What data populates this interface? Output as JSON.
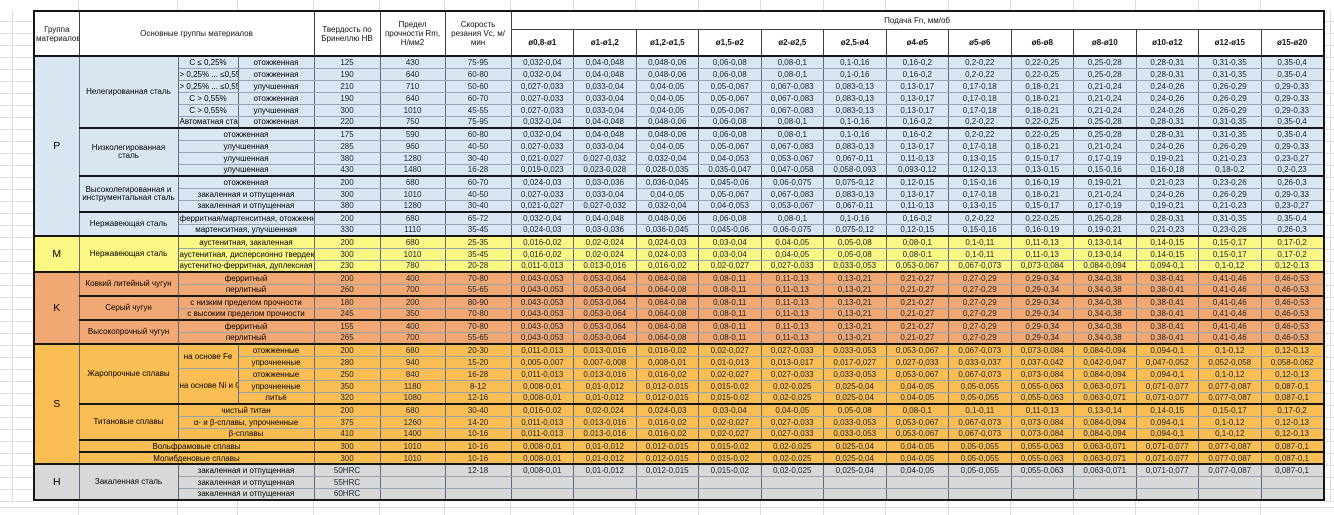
{
  "header": {
    "col_group": "Группа материалов",
    "col_main": "Основные группы материалов",
    "col_hardness": "Твердость по Бринеллю HB",
    "col_strength": "Предел прочности Rm, Н/мм2",
    "col_speed": "Скорость резания Vc, м/мин",
    "feed_title": "Подача Fn, мм/об",
    "feed_cols": [
      "ø0,8-ø1",
      "ø1-ø1,2",
      "ø1,2-ø1,5",
      "ø1,5-ø2",
      "ø2-ø2,5",
      "ø2,5-ø4",
      "ø4-ø5",
      "ø5-ø6",
      "ø6-ø8",
      "ø8-ø10",
      "ø10-ø12",
      "ø12-ø15",
      "ø15-ø20"
    ]
  },
  "colors": {
    "section_P": "#D9E5F1",
    "section_M": "#FAF784",
    "section_K": "#F2A873",
    "section_S": "#FBBE55",
    "section_H": "#D8D8D8",
    "marker_green": "#1E9B32"
  },
  "feed_patterns": {
    "A": [
      "0,032-0,04",
      "0,04-0,048",
      "0,048-0,06",
      "0,06-0,08",
      "0,08-0,1",
      "0,1-0,16",
      "0,16-0,2",
      "0,2-0,22",
      "0,22-0,25",
      "0,25-0,28",
      "0,28-0,31",
      "0,31-0,35",
      "0,35-0,4"
    ],
    "B": [
      "0,027-0,033",
      "0,033-0,04",
      "0,04-0,05",
      "0,05-0,067",
      "0,067-0,083",
      "0,083-0,13",
      "0,13-0,17",
      "0,17-0,18",
      "0,18-0,21",
      "0,21-0,24",
      "0,24-0,26",
      "0,26-0,29",
      "0,29-0,33"
    ],
    "C": [
      "0,021-0,027",
      "0,027-0,032",
      "0,032-0,04",
      "0,04-0,053",
      "0,053-0,067",
      "0,067-0,11",
      "0,11-0,13",
      "0,13-0,15",
      "0,15-0,17",
      "0,17-0,19",
      "0,19-0,21",
      "0,21-0,23",
      "0,23-0,27"
    ],
    "D": [
      "0,019-0,023",
      "0,023-0,028",
      "0,028-0,035",
      "0,035-0,047",
      "0,047-0,058",
      "0,058-0,093",
      "0,093-0,12",
      "0,12-0,13",
      "0,13-0,15",
      "0,15-0,16",
      "0,16-0,18",
      "0,18-0,2",
      "0,2-0,23"
    ],
    "E": [
      "0,024-0,03",
      "0,03-0,036",
      "0,036-0,045",
      "0,045-0,06",
      "0,06-0,075",
      "0,075-0,12",
      "0,12-0,15",
      "0,15-0,16",
      "0,16-0,19",
      "0,19-0,21",
      "0,21-0,23",
      "0,23-0,26",
      "0,26-0,3"
    ],
    "F": [
      "0,016-0,02",
      "0,02-0,024",
      "0,024-0,03",
      "0,03-0,04",
      "0,04-0,05",
      "0,05-0,08",
      "0,08-0,1",
      "0,1-0,11",
      "0,11-0,13",
      "0,13-0,14",
      "0,14-0,15",
      "0,15-0,17",
      "0,17-0,2"
    ],
    "G": [
      "0,011-0,013",
      "0,013-0,016",
      "0,016-0,02",
      "0,02-0,027",
      "0,027-0,033",
      "0,033-0,053",
      "0,053-0,067",
      "0,067-0,073",
      "0,073-0,084",
      "0,084-0,094",
      "0,094-0,1",
      "0,1-0,12",
      "0,12-0,13"
    ],
    "KCI": [
      "0,043-0,053",
      "0,053-0,064",
      "0,064-0,08",
      "0,08-0,11",
      "0,11-0,13",
      "0,13-0,21",
      "0,21-0,27",
      "0,27-0,29",
      "0,29-0,34",
      "0,34-0,38",
      "0,38-0,41",
      "0,41-0,46",
      "0,46-0,53"
    ],
    "S2": [
      "0,005-0,007",
      "0,007-0,008",
      "0,008-0,01",
      "0,01-0,013",
      "0,013-0,017",
      "0,017-0,027",
      "0,027-0,033",
      "0,033-0,037",
      "0,037-0,042",
      "0,042-0,047",
      "0,047-0,052",
      "0,052-0,058",
      "0,058-0,062"
    ],
    "S4": [
      "0,008-0,01",
      "0,01-0,012",
      "0,012-0,015",
      "0,015-0,02",
      "0,02-0,025",
      "0,025-0,04",
      "0,04-0,05",
      "0,05-0,055",
      "0,055-0,063",
      "0,063-0,071",
      "0,071-0,077",
      "0,077-0,087",
      "0,087-0,1"
    ]
  },
  "groups": [
    {
      "letter": "P",
      "blocks": [
        {
          "main": "Нелегированная сталь",
          "rows": [
            {
              "subA": "C ≤ 0,25%",
              "subB": "отожженная",
              "hb": "125",
              "rm": "430",
              "vc": "75-95",
              "feeds": "A"
            },
            {
              "subA": "> 0,25% ... ≤0,55",
              "subB": "отожженная",
              "hb": "190",
              "rm": "640",
              "vc": "60-80",
              "feeds": "A"
            },
            {
              "subA": "> 0,25% ... ≤0,55",
              "subB": "улучшенная",
              "hb": "210",
              "rm": "710",
              "vc": "50-60",
              "feeds": "B"
            },
            {
              "subA": "C > 0,55%",
              "subB": "отожженная",
              "hb": "190",
              "rm": "640",
              "vc": "60-70",
              "feeds": "B"
            },
            {
              "subA": "C > 0,55%",
              "subB": "улучшенная",
              "hb": "300",
              "rm": "1010",
              "vc": "45-55",
              "feeds": "B"
            },
            {
              "subA": "Автоматная сталь",
              "subB": "отожженная",
              "hb": "220",
              "rm": "750",
              "vc": "75-95",
              "feeds": "A"
            }
          ]
        },
        {
          "main": "Низколегированная сталь",
          "rows": [
            {
              "sub": "отожженная",
              "hb": "175",
              "rm": "590",
              "vc": "60-80",
              "feeds": "A"
            },
            {
              "sub": "улучшенная",
              "hb": "285",
              "rm": "960",
              "vc": "40-50",
              "feeds": "B"
            },
            {
              "sub": "улучшенная",
              "hb": "380",
              "rm": "1280",
              "vc": "30-40",
              "feeds": "C"
            },
            {
              "sub": "улучшенная",
              "hb": "430",
              "rm": "1480",
              "vc": "16-28",
              "feeds": "D"
            }
          ]
        },
        {
          "main": "Высоколегированная и инструментальная сталь",
          "rows": [
            {
              "sub": "отожженная",
              "hb": "200",
              "rm": "680",
              "vc": "60-70",
              "feeds": "E"
            },
            {
              "sub": "закаленная и отпущенная",
              "hb": "300",
              "rm": "1010",
              "vc": "40-50",
              "feeds": "B"
            },
            {
              "sub": "закаленная и отпущенная",
              "hb": "380",
              "rm": "1280",
              "vc": "30-40",
              "feeds": "C"
            }
          ]
        },
        {
          "main": "Нержавеющая сталь",
          "rows": [
            {
              "sub": "ферритная/мартенситная, отожженная",
              "hb": "200",
              "rm": "680",
              "vc": "65-72",
              "feeds": "A"
            },
            {
              "sub": "мартенситная, улучшенная",
              "hb": "330",
              "rm": "1110",
              "vc": "35-45",
              "feeds": "E"
            }
          ]
        }
      ]
    },
    {
      "letter": "M",
      "blocks": [
        {
          "main": "Нержавеющая сталь",
          "rows": [
            {
              "sub": "аустенитная, закаленная",
              "hb": "200",
              "rm": "680",
              "vc": "25-35",
              "feeds": "F"
            },
            {
              "sub": "аустенитная, дисперсионно твердеющая",
              "hb": "300",
              "rm": "1010",
              "vc": "35-45",
              "feeds": "F"
            },
            {
              "sub": "аустенитно-ферритная, дуплексная",
              "hb": "230",
              "rm": "780",
              "vc": "20-28",
              "feeds": "G"
            }
          ]
        }
      ]
    },
    {
      "letter": "K",
      "blocks": [
        {
          "main": "Ковкий литейный чугун",
          "rows": [
            {
              "sub": "ферритный",
              "hb": "200",
              "rm": "400",
              "vc": "70-80",
              "feeds": "KCI"
            },
            {
              "sub": "перлитный",
              "hb": "260",
              "rm": "700",
              "vc": "55-65",
              "feeds": "KCI"
            }
          ]
        },
        {
          "main": "Серый чугун",
          "rows": [
            {
              "sub": "с низким пределом прочности",
              "hb": "180",
              "rm": "200",
              "vc": "80-90",
              "feeds": "KCI"
            },
            {
              "sub": "с высоким пределом прочности",
              "hb": "245",
              "rm": "350",
              "vc": "70-80",
              "feeds": "KCI"
            }
          ]
        },
        {
          "main": "Высокопрочный чугун",
          "rows": [
            {
              "sub": "ферритный",
              "hb": "155",
              "rm": "400",
              "vc": "70-80",
              "feeds": "KCI"
            },
            {
              "sub": "перлитный",
              "hb": "265",
              "rm": "700",
              "vc": "55-65",
              "feeds": "KCI"
            }
          ]
        }
      ]
    },
    {
      "letter": "S",
      "blocks": [
        {
          "main": "Жаропрочные сплавы",
          "rows": [
            {
              "subA": "на основе Fe",
              "subA_rowspan": 2,
              "subB": "отожженные",
              "hb": "200",
              "rm": "680",
              "vc": "20-30",
              "feeds": "G"
            },
            {
              "subB": "упрочненные",
              "hb": "280",
              "rm": "940",
              "vc": "15-20",
              "feeds": "S2"
            },
            {
              "subA": "на основе Ni и Co",
              "subA_rowspan": 3,
              "subB": "отожженные",
              "hb": "250",
              "rm": "840",
              "vc": "16-28",
              "feeds": "G"
            },
            {
              "subB": "упрочненные",
              "hb": "350",
              "rm": "1180",
              "vc": "8-12",
              "feeds": "S4"
            },
            {
              "subB": "литьё",
              "hb": "320",
              "rm": "1080",
              "vc": "12-16",
              "vc_marker": true,
              "feeds": "S4"
            }
          ]
        },
        {
          "main": "Титановые сплавы",
          "rows": [
            {
              "sub": "чистый титан",
              "hb": "200",
              "rm": "680",
              "vc": "30-40",
              "feeds": "F"
            },
            {
              "sub": "α- и β-сплавы, упрочненные",
              "hb": "375",
              "rm": "1260",
              "vc": "14-20",
              "feeds": "G"
            },
            {
              "sub": "β-сплавы",
              "hb": "410",
              "rm": "1400",
              "vc": "10-16",
              "vc_marker": true,
              "feeds": "G"
            }
          ]
        },
        {
          "wide": "Вольфрамовые сплавы",
          "rows": [
            {
              "hb": "300",
              "rm": "1010",
              "vc": "10-16",
              "vc_marker": true,
              "feeds": "S4"
            }
          ]
        },
        {
          "wide": "Молибденовые сплавы",
          "rows": [
            {
              "hb": "300",
              "rm": "1010",
              "vc": "10-16",
              "vc_marker": true,
              "feeds": "S4"
            }
          ]
        }
      ]
    },
    {
      "letter": "H",
      "blocks": [
        {
          "main": "Закаленная сталь",
          "rows": [
            {
              "sub": "закаленная и отпущенная",
              "hb": "50HRC",
              "rm": "",
              "vc": "12-18",
              "vc_marker": true,
              "feeds": "S4"
            },
            {
              "sub": "закаленная и отпущенная",
              "hb": "55HRC",
              "rm": "",
              "vc": "",
              "feeds": null
            },
            {
              "sub": "закаленная и отпущенная",
              "hb": "60HRC",
              "rm": "",
              "vc": "",
              "feeds": null
            }
          ]
        }
      ]
    }
  ]
}
